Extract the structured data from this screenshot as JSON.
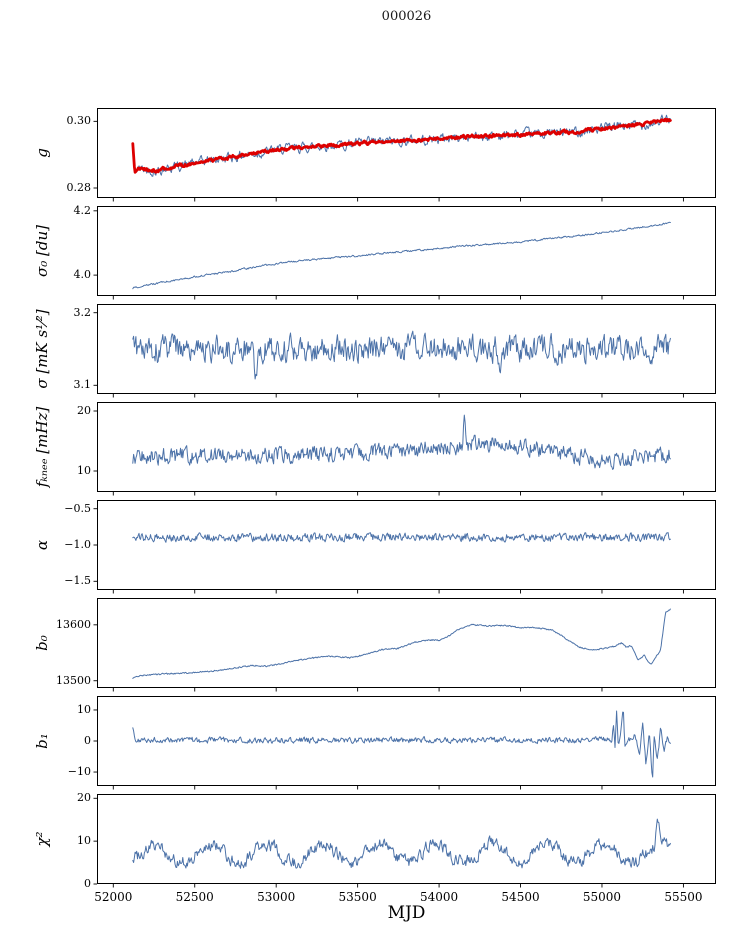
{
  "chart_data": {
    "type": "line",
    "title": "000026",
    "xlabel": "MJD",
    "legend": "none",
    "grid": false,
    "xlim": [
      51900,
      55700
    ],
    "x_domain": [
      52120,
      55420
    ],
    "xticks": [
      {
        "v": 52000,
        "label": "52000"
      },
      {
        "v": 52500,
        "label": "52500"
      },
      {
        "v": 53000,
        "label": "53000"
      },
      {
        "v": 53500,
        "label": "53500"
      },
      {
        "v": 54000,
        "label": "54000"
      },
      {
        "v": 54500,
        "label": "54500"
      },
      {
        "v": 55000,
        "label": "55000"
      },
      {
        "v": 55500,
        "label": "55500"
      }
    ],
    "colors": {
      "line": "#4c72a8",
      "highlight": "#dd0000",
      "spine": "#000000"
    },
    "panels": [
      {
        "id": "g",
        "ylabel": "g",
        "ylim": [
          0.277,
          0.304
        ],
        "yticks": [
          {
            "v": 0.28,
            "label": "0.28"
          },
          {
            "v": 0.3,
            "label": "0.30"
          }
        ],
        "series": [
          {
            "name": "g raw",
            "color": "#4c72a8",
            "width": 1,
            "noise": 0.0016,
            "ar": 0.55,
            "trend": [
              [
                52120,
                0.293
              ],
              [
                52132,
                0.2845
              ],
              [
                52150,
                0.2858
              ],
              [
                52250,
                0.2852
              ],
              [
                52400,
                0.2866
              ],
              [
                52600,
                0.2884
              ],
              [
                52800,
                0.2898
              ],
              [
                53000,
                0.2914
              ],
              [
                53200,
                0.2924
              ],
              [
                53400,
                0.293
              ],
              [
                53600,
                0.2937
              ],
              [
                53800,
                0.2942
              ],
              [
                54000,
                0.2948
              ],
              [
                54200,
                0.2954
              ],
              [
                54400,
                0.2958
              ],
              [
                54600,
                0.2962
              ],
              [
                54800,
                0.2968
              ],
              [
                55000,
                0.2978
              ],
              [
                55150,
                0.2986
              ],
              [
                55300,
                0.2995
              ],
              [
                55380,
                0.3003
              ],
              [
                55420,
                0.3003
              ]
            ]
          },
          {
            "name": "g smoothed",
            "color": "#dd0000",
            "width": 2.8,
            "noise": 0.0005,
            "ar": 0.5,
            "trend": [
              [
                52120,
                0.293
              ],
              [
                52132,
                0.2845
              ],
              [
                52150,
                0.2858
              ],
              [
                52250,
                0.2852
              ],
              [
                52400,
                0.2866
              ],
              [
                52600,
                0.2884
              ],
              [
                52800,
                0.2898
              ],
              [
                53000,
                0.2914
              ],
              [
                53200,
                0.2924
              ],
              [
                53400,
                0.293
              ],
              [
                53600,
                0.2937
              ],
              [
                53800,
                0.2942
              ],
              [
                54000,
                0.2948
              ],
              [
                54200,
                0.2954
              ],
              [
                54400,
                0.2958
              ],
              [
                54600,
                0.2962
              ],
              [
                54800,
                0.2968
              ],
              [
                55000,
                0.2978
              ],
              [
                55150,
                0.2986
              ],
              [
                55300,
                0.2995
              ],
              [
                55380,
                0.3003
              ],
              [
                55420,
                0.3003
              ]
            ]
          }
        ]
      },
      {
        "id": "sigma0",
        "ylabel": "σ₀ [du]",
        "ylim": [
          3.935,
          4.215
        ],
        "yticks": [
          {
            "v": 4.0,
            "label": "4.0"
          },
          {
            "v": 4.2,
            "label": "4.2"
          }
        ],
        "series": [
          {
            "name": "sigma0",
            "color": "#4c72a8",
            "width": 1,
            "noise": 0.0025,
            "ar": 0.45,
            "trend": [
              [
                52120,
                3.96
              ],
              [
                52200,
                3.968
              ],
              [
                52350,
                3.982
              ],
              [
                52500,
                3.995
              ],
              [
                52700,
                4.01
              ],
              [
                52900,
                4.028
              ],
              [
                53100,
                4.042
              ],
              [
                53300,
                4.052
              ],
              [
                53500,
                4.06
              ],
              [
                53700,
                4.07
              ],
              [
                53900,
                4.078
              ],
              [
                54100,
                4.088
              ],
              [
                54300,
                4.096
              ],
              [
                54500,
                4.103
              ],
              [
                54700,
                4.115
              ],
              [
                54900,
                4.125
              ],
              [
                55100,
                4.138
              ],
              [
                55250,
                4.15
              ],
              [
                55420,
                4.162
              ]
            ]
          }
        ]
      },
      {
        "id": "sigma",
        "ylabel": "σ [mK s¹⁄²]",
        "ylim": [
          3.088,
          3.212
        ],
        "yticks": [
          {
            "v": 3.1,
            "label": "3.1"
          },
          {
            "v": 3.2,
            "label": "3.2"
          }
        ],
        "series": [
          {
            "name": "sigma",
            "color": "#4c72a8",
            "width": 1,
            "noise": 0.016,
            "ar": 0.45,
            "trend": [
              [
                52120,
                3.15
              ],
              [
                52860,
                3.151
              ],
              [
                52875,
                3.116
              ],
              [
                52890,
                3.15
              ],
              [
                54360,
                3.151
              ],
              [
                54378,
                3.11
              ],
              [
                54395,
                3.15
              ],
              [
                55420,
                3.152
              ]
            ]
          }
        ]
      },
      {
        "id": "fknee",
        "ylabel": "fₖₙₑₑ [mHz]",
        "ylim": [
          6.5,
          21.5
        ],
        "yticks": [
          {
            "v": 10,
            "label": "10"
          },
          {
            "v": 20,
            "label": "20"
          }
        ],
        "series": [
          {
            "name": "fknee",
            "color": "#4c72a8",
            "width": 1,
            "noise": 1.15,
            "ar": 0.4,
            "trend": [
              [
                52120,
                12.3
              ],
              [
                52400,
                12.6
              ],
              [
                52800,
                12.5
              ],
              [
                53200,
                12.8
              ],
              [
                53600,
                13.0
              ],
              [
                53900,
                13.6
              ],
              [
                54100,
                14.2
              ],
              [
                54140,
                14.4
              ],
              [
                54155,
                18.6
              ],
              [
                54170,
                14.4
              ],
              [
                54260,
                14.8
              ],
              [
                54400,
                14.3
              ],
              [
                54600,
                13.6
              ],
              [
                54800,
                12.8
              ],
              [
                55000,
                11.8
              ],
              [
                55150,
                11.9
              ],
              [
                55300,
                12.4
              ],
              [
                55420,
                12.8
              ]
            ]
          }
        ]
      },
      {
        "id": "alpha",
        "ylabel": "α",
        "ylim": [
          -1.62,
          -0.38
        ],
        "yticks": [
          {
            "v": -0.5,
            "label": "−0.5"
          },
          {
            "v": -1.0,
            "label": "−1.0"
          },
          {
            "v": -1.5,
            "label": "−1.5"
          }
        ],
        "series": [
          {
            "name": "alpha",
            "color": "#4c72a8",
            "width": 1,
            "noise": 0.045,
            "ar": 0.35,
            "trend": [
              [
                52120,
                -0.9
              ],
              [
                55420,
                -0.89
              ]
            ]
          }
        ]
      },
      {
        "id": "b0",
        "ylabel": "b₀",
        "ylim": [
          13487,
          13648
        ],
        "yticks": [
          {
            "v": 13500,
            "label": "13500"
          },
          {
            "v": 13600,
            "label": "13600"
          }
        ],
        "series": [
          {
            "name": "b0",
            "color": "#4c72a8",
            "width": 1,
            "noise": 0.9,
            "ar": 0.25,
            "trend": [
              [
                52120,
                13504
              ],
              [
                52160,
                13509
              ],
              [
                52300,
                13512
              ],
              [
                52450,
                13514
              ],
              [
                52600,
                13517
              ],
              [
                52750,
                13523
              ],
              [
                52850,
                13527
              ],
              [
                52950,
                13526
              ],
              [
                53100,
                13535
              ],
              [
                53250,
                13542
              ],
              [
                53350,
                13544
              ],
              [
                53450,
                13541
              ],
              [
                53550,
                13547
              ],
              [
                53650,
                13556
              ],
              [
                53750,
                13558
              ],
              [
                53850,
                13569
              ],
              [
                53950,
                13573
              ],
              [
                54000,
                13572
              ],
              [
                54050,
                13578
              ],
              [
                54120,
                13592
              ],
              [
                54200,
                13600
              ],
              [
                54300,
                13598
              ],
              [
                54400,
                13599
              ],
              [
                54500,
                13595
              ],
              [
                54600,
                13595
              ],
              [
                54700,
                13590
              ],
              [
                54780,
                13575
              ],
              [
                54860,
                13560
              ],
              [
                54940,
                13555
              ],
              [
                55020,
                13558
              ],
              [
                55080,
                13562
              ],
              [
                55120,
                13568
              ],
              [
                55150,
                13560
              ],
              [
                55180,
                13563
              ],
              [
                55220,
                13538
              ],
              [
                55260,
                13545
              ],
              [
                55300,
                13528
              ],
              [
                55330,
                13542
              ],
              [
                55360,
                13555
              ],
              [
                55390,
                13622
              ],
              [
                55420,
                13628
              ]
            ]
          }
        ]
      },
      {
        "id": "b1",
        "ylabel": "b₁",
        "ylim": [
          -14.5,
          14.5
        ],
        "yticks": [
          {
            "v": -10,
            "label": "−10"
          },
          {
            "v": 0,
            "label": "0"
          },
          {
            "v": 10,
            "label": "10"
          }
        ],
        "series": [
          {
            "name": "b1",
            "color": "#4c72a8",
            "width": 1,
            "noise": 0.8,
            "ar": 0.4,
            "trend": [
              [
                52120,
                4
              ],
              [
                52135,
                1
              ],
              [
                52150,
                0.3
              ],
              [
                55000,
                0.3
              ],
              [
                55060,
                0.3
              ],
              [
                55070,
                6
              ],
              [
                55080,
                -2
              ],
              [
                55090,
                11
              ],
              [
                55100,
                -1
              ],
              [
                55110,
                0
              ],
              [
                55130,
                12
              ],
              [
                55140,
                -2
              ],
              [
                55160,
                0
              ],
              [
                55200,
                2
              ],
              [
                55230,
                -4
              ],
              [
                55250,
                5
              ],
              [
                55270,
                -8
              ],
              [
                55290,
                3
              ],
              [
                55310,
                -13
              ],
              [
                55320,
                2
              ],
              [
                55340,
                -6
              ],
              [
                55360,
                4
              ],
              [
                55380,
                -3
              ],
              [
                55400,
                1
              ],
              [
                55420,
                0
              ]
            ]
          }
        ]
      },
      {
        "id": "chi2",
        "ylabel": "χ²",
        "ylim": [
          0,
          21
        ],
        "yticks": [
          {
            "v": 0,
            "label": "0"
          },
          {
            "v": 10,
            "label": "10"
          },
          {
            "v": 20,
            "label": "20"
          }
        ],
        "series": [
          {
            "name": "chi2",
            "color": "#4c72a8",
            "width": 1,
            "noise": 1.5,
            "ar": 0.5,
            "osc": {
              "amp": 2.1,
              "period": 345,
              "phase": 52164
            },
            "trend": [
              [
                52120,
                7.0
              ],
              [
                55320,
                7.2
              ],
              [
                55345,
                12.5
              ],
              [
                55365,
                8.5
              ],
              [
                55420,
                8.0
              ]
            ]
          }
        ]
      }
    ]
  }
}
